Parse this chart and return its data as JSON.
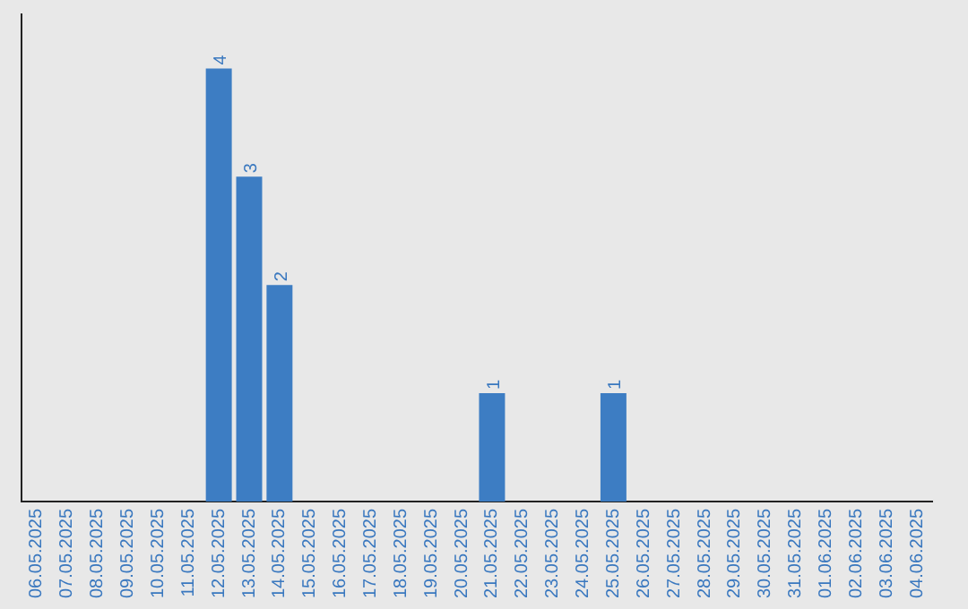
{
  "chart_data": {
    "type": "bar",
    "categories": [
      "06.05.2025",
      "07.05.2025",
      "08.05.2025",
      "09.05.2025",
      "10.05.2025",
      "11.05.2025",
      "12.05.2025",
      "13.05.2025",
      "14.05.2025",
      "15.05.2025",
      "16.05.2025",
      "17.05.2025",
      "18.05.2025",
      "19.05.2025",
      "20.05.2025",
      "21.05.2025",
      "22.05.2025",
      "23.05.2025",
      "24.05.2025",
      "25.05.2025",
      "26.05.2025",
      "27.05.2025",
      "28.05.2025",
      "29.05.2025",
      "30.05.2025",
      "31.05.2025",
      "01.06.2025",
      "02.06.2025",
      "03.06.2025",
      "04.06.2025"
    ],
    "values": [
      0,
      0,
      0,
      0,
      0,
      0,
      4,
      3,
      2,
      0,
      0,
      0,
      0,
      0,
      0,
      1,
      0,
      0,
      0,
      1,
      0,
      0,
      0,
      0,
      0,
      0,
      0,
      0,
      0,
      0
    ],
    "value_labels": [
      null,
      null,
      null,
      null,
      null,
      null,
      "4",
      "3",
      "2",
      null,
      null,
      null,
      null,
      null,
      null,
      "1",
      null,
      null,
      null,
      "1",
      null,
      null,
      null,
      null,
      null,
      null,
      null,
      null,
      null,
      null
    ],
    "color": "#3d7dc3",
    "grid": false,
    "legend": false
  }
}
